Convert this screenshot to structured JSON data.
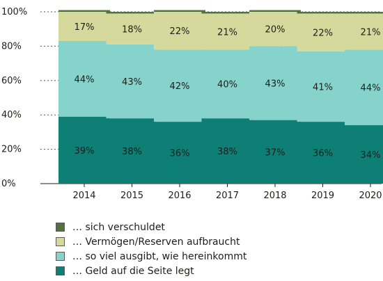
{
  "chart_data": {
    "type": "bar",
    "stacked": true,
    "categories": [
      "2014",
      "2015",
      "2016",
      "2017",
      "2018",
      "2019",
      "2020"
    ],
    "ylim": [
      0,
      100
    ],
    "yticks": [
      "0%",
      "20%",
      "40%",
      "60%",
      "80%",
      "100%"
    ],
    "series": [
      {
        "name": "… Geld auf die Seite legt",
        "color": "#0e7f74",
        "values": [
          39,
          38,
          36,
          38,
          37,
          36,
          34
        ],
        "labels": [
          "39%",
          "38%",
          "36%",
          "38%",
          "37%",
          "36%",
          "34%"
        ]
      },
      {
        "name": "… so viel ausgibt, wie hereinkommt",
        "color": "#86d3cc",
        "values": [
          44,
          43,
          42,
          40,
          43,
          41,
          44
        ],
        "labels": [
          "44%",
          "43%",
          "42%",
          "40%",
          "43%",
          "41%",
          "44%"
        ]
      },
      {
        "name": "… Vermögen/Reserven aufbraucht",
        "color": "#d5da9c",
        "values": [
          17,
          18,
          22,
          21,
          20,
          22,
          21
        ],
        "labels": [
          "17%",
          "18%",
          "22%",
          "21%",
          "20%",
          "22%",
          "21%"
        ]
      },
      {
        "name": "… sich verschuldet",
        "color": "#51733c",
        "values": [
          1,
          1,
          1,
          1,
          1,
          1,
          1
        ]
      }
    ],
    "legend_position": "bottom-left",
    "grid": "dotted horizontal"
  },
  "legend": {
    "items": [
      {
        "label": "… sich verschuldet",
        "color": "#51733c"
      },
      {
        "label": "… Vermögen/Reserven aufbraucht",
        "color": "#d5da9c"
      },
      {
        "label": "… so viel ausgibt, wie hereinkommt",
        "color": "#86d3cc"
      },
      {
        "label": "… Geld auf die Seite legt",
        "color": "#0e7f74"
      }
    ]
  }
}
